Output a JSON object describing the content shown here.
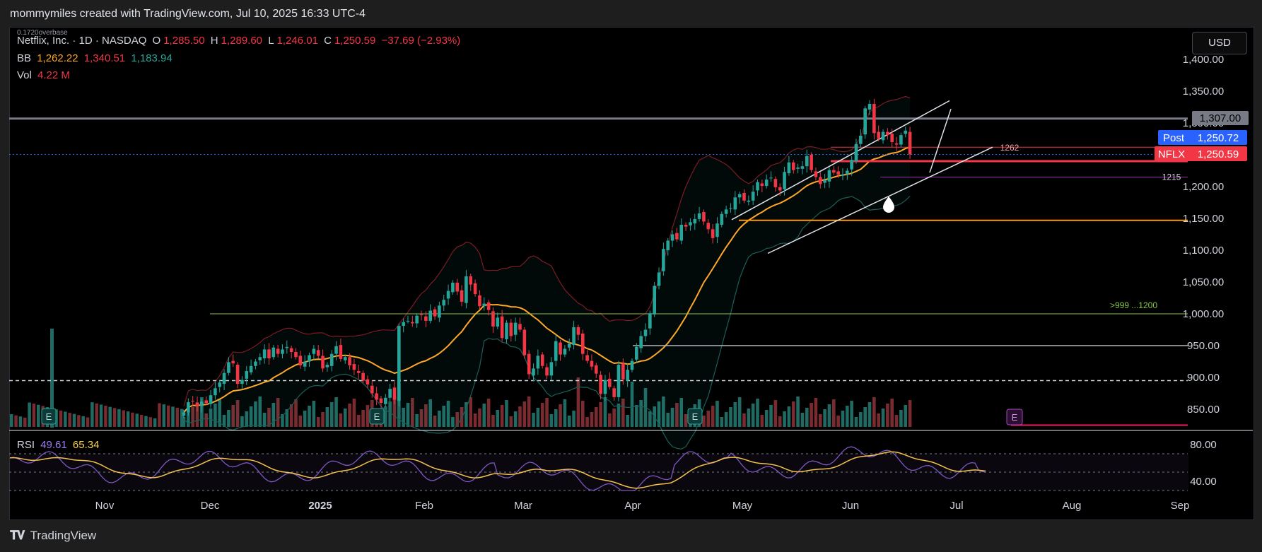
{
  "header": {
    "title": "mommymiles created with TradingView.com, Jul 10, 2025 16:33 UTC-4"
  },
  "legend": {
    "symbol": "Netflix, Inc. · 1D · NASDAQ",
    "ohlc": {
      "o_label": "O",
      "o": "1,285.50",
      "h_label": "H",
      "h": "1,289.60",
      "l_label": "L",
      "l": "1,246.01",
      "c_label": "C",
      "c": "1,250.59",
      "chg": "−37.69 (−2.93%)"
    },
    "bb": {
      "label": "BB",
      "basis": "1,262.22",
      "upper": "1,340.51",
      "lower": "1,183.94"
    },
    "vol": {
      "label": "Vol",
      "value": "4.22 M"
    },
    "rsi": {
      "label": "RSI",
      "value": "49.61",
      "ma": "65.34"
    },
    "overlay_text": "0.1720overbase"
  },
  "currency": "USD",
  "price_labels": {
    "level_1307": "1,307.00",
    "post_label": "Post",
    "post_value": "1,250.72",
    "nflx_label": "NFLX",
    "nflx_value": "1,250.59"
  },
  "annotations": {
    "a1262": "1262",
    "a1215": "1215",
    "a999": ">999 ...1200"
  },
  "footer": {
    "brand": "TradingView"
  },
  "colors": {
    "up": "#26a69a",
    "down": "#f23645",
    "bb_basis": "#ffa726",
    "rsi": "#7e57c2",
    "post": "#2962ff"
  },
  "chart_data": {
    "type": "candlestick",
    "title": "",
    "y_axis": {
      "ticks": [
        1400,
        1350,
        1300,
        1250,
        1200,
        1150,
        1100,
        1050,
        1000,
        950,
        900,
        850
      ],
      "range": [
        830,
        1415
      ]
    },
    "x_axis": {
      "labels": [
        "Nov",
        "Dec",
        "2025",
        "Feb",
        "Mar",
        "Apr",
        "May",
        "Jun",
        "Jul",
        "Aug",
        "Sep"
      ]
    },
    "rsi_axis": {
      "ticks": [
        80,
        40
      ],
      "levels": [
        70,
        50,
        30
      ]
    },
    "horizontal_levels": [
      1307,
      1262,
      1250.59,
      1240,
      1215,
      1147,
      1000,
      950,
      895,
      825
    ],
    "closes": [
      845,
      861,
      862,
      855,
      862,
      860,
      872,
      883,
      892,
      907,
      924,
      922,
      890,
      896,
      910,
      918,
      925,
      932,
      944,
      930,
      947,
      937,
      944,
      948,
      940,
      932,
      919,
      925,
      935,
      945,
      934,
      914,
      920,
      937,
      949,
      929,
      932,
      919,
      912,
      907,
      895,
      889,
      875,
      865,
      860,
      868,
      882,
      865,
      981,
      987,
      989,
      985,
      997,
      998,
      989,
      1005,
      996,
      1013,
      1022,
      1036,
      1049,
      1035,
      1019,
      1059,
      1046,
      1031,
      1012,
      1016,
      1006,
      980,
      994,
      962,
      986,
      965,
      986,
      975,
      935,
      905,
      914,
      934,
      918,
      903,
      924,
      957,
      936,
      945,
      953,
      979,
      967,
      937,
      926,
      917,
      906,
      874,
      896,
      885,
      869,
      920,
      897,
      912,
      926,
      948,
      965,
      975,
      1001,
      1044,
      1065,
      1102,
      1115,
      1125,
      1117,
      1140,
      1137,
      1144,
      1149,
      1158,
      1145,
      1133,
      1119,
      1142,
      1157,
      1164,
      1166,
      1183,
      1188,
      1178,
      1178,
      1192,
      1207,
      1201,
      1211,
      1214,
      1199,
      1194,
      1223,
      1238,
      1226,
      1230,
      1232,
      1248,
      1226,
      1215,
      1204,
      1210,
      1226,
      1222,
      1219,
      1219,
      1225,
      1242,
      1267,
      1280,
      1323,
      1330,
      1284,
      1275,
      1286,
      1281,
      1270,
      1266,
      1281,
      1288,
      1250.59
    ],
    "bb_basis_last": 1262.22,
    "bb_upper_last": 1340.51,
    "bb_lower_last": 1183.94,
    "last_volume": "4.22 M",
    "rsi_last": 49.61,
    "rsi_ma_last": 65.34,
    "trendlines": [
      {
        "from": [
          "May 1",
          1148
        ],
        "to": [
          "Jun 30",
          1335
        ]
      },
      {
        "from": [
          "May 7",
          1095
        ],
        "to": [
          "Jul 10",
          1262
        ]
      }
    ]
  }
}
